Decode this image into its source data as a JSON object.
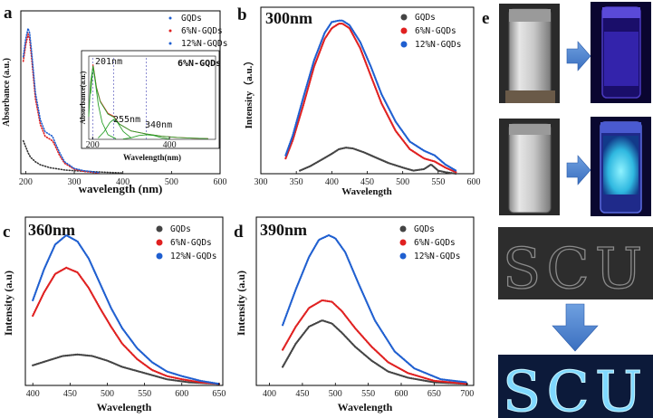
{
  "chart_data": [
    {
      "id": "a",
      "type": "line",
      "panel_label": "a",
      "xlabel": "wavelength (nm)",
      "ylabel": "Absorbance (a.u.)",
      "xlim": [
        190,
        600
      ],
      "ylim": [
        0,
        1.0
      ],
      "xticks": [
        200,
        300,
        400,
        500,
        600
      ],
      "legend": [
        "GQDs",
        "6%N-GQDs",
        "12%N-GQDs"
      ],
      "series": [
        {
          "name": "GQDs",
          "color": "#333333",
          "x": [
            195,
            200,
            205,
            210,
            220,
            230,
            240,
            250,
            260,
            270,
            280,
            300,
            330,
            360,
            400
          ],
          "y": [
            0.22,
            0.18,
            0.14,
            0.11,
            0.08,
            0.06,
            0.05,
            0.04,
            0.035,
            0.03,
            0.025,
            0.02,
            0.015,
            0.01,
            0.005
          ]
        },
        {
          "name": "6%N-GQDs",
          "color": "#e02020",
          "x": [
            195,
            200,
            205,
            208,
            212,
            220,
            230,
            240,
            250,
            255,
            260,
            270,
            280,
            300,
            320,
            350
          ],
          "y": [
            0.75,
            0.86,
            0.93,
            0.9,
            0.78,
            0.5,
            0.33,
            0.25,
            0.23,
            0.22,
            0.19,
            0.12,
            0.07,
            0.03,
            0.015,
            0.005
          ]
        },
        {
          "name": "12%N-GQDs",
          "color": "#1f5fd0",
          "x": [
            195,
            200,
            205,
            208,
            212,
            220,
            230,
            240,
            250,
            255,
            260,
            270,
            280,
            300,
            320,
            350
          ],
          "y": [
            0.78,
            0.9,
            0.97,
            0.94,
            0.82,
            0.54,
            0.36,
            0.28,
            0.26,
            0.25,
            0.21,
            0.14,
            0.08,
            0.035,
            0.02,
            0.008
          ]
        }
      ]
    },
    {
      "id": "a-inset",
      "type": "line",
      "title": "6%N-GQDs",
      "xlabel": "Wavelength(nm)",
      "ylabel": "Absorbance(a.u.)",
      "xlim": [
        190,
        520
      ],
      "ylim": [
        0,
        1.0
      ],
      "xticks": [
        200,
        400
      ],
      "annotations": [
        "201nm",
        "255nm",
        "340nm"
      ],
      "peaks": [
        201,
        255,
        340
      ],
      "series": [
        {
          "name": "data",
          "color": "#e02020",
          "x": [
            195,
            201,
            205,
            210,
            220,
            240,
            255,
            270,
            300,
            340,
            380,
            420,
            460,
            500
          ],
          "y": [
            0.62,
            0.98,
            0.85,
            0.68,
            0.5,
            0.34,
            0.3,
            0.2,
            0.11,
            0.07,
            0.04,
            0.025,
            0.015,
            0.01
          ]
        },
        {
          "name": "fit",
          "color": "#2aa02a",
          "x": [
            195,
            201,
            205,
            210,
            220,
            240,
            255,
            270,
            300,
            340,
            380,
            420,
            460,
            500
          ],
          "y": [
            0.6,
            0.96,
            0.84,
            0.67,
            0.49,
            0.33,
            0.29,
            0.2,
            0.11,
            0.07,
            0.04,
            0.025,
            0.015,
            0.01
          ]
        },
        {
          "name": "peak 201",
          "color": "#2aa02a",
          "x": [
            190,
            195,
            201,
            207,
            215,
            225,
            240,
            260
          ],
          "y": [
            0.3,
            0.75,
            0.95,
            0.75,
            0.45,
            0.22,
            0.06,
            0.01
          ]
        },
        {
          "name": "peak 255",
          "color": "#2aa02a",
          "x": [
            215,
            230,
            245,
            255,
            265,
            280,
            300
          ],
          "y": [
            0.02,
            0.1,
            0.22,
            0.26,
            0.22,
            0.1,
            0.02
          ]
        },
        {
          "name": "peak 340",
          "color": "#2aa02a",
          "x": [
            280,
            300,
            320,
            340,
            360,
            380,
            400
          ],
          "y": [
            0.005,
            0.02,
            0.05,
            0.06,
            0.05,
            0.02,
            0.005
          ]
        }
      ]
    },
    {
      "id": "b",
      "type": "line",
      "panel_label": "b",
      "wavelength_label": "300nm",
      "xlabel": "Wavelength",
      "ylabel": "Intensity（a.u.）",
      "xlim": [
        300,
        600
      ],
      "ylim": [
        0,
        1.0
      ],
      "xticks": [
        300,
        350,
        400,
        450,
        500,
        550,
        600
      ],
      "legend": [
        "GQDs",
        "6%N-GQDs",
        "12%N-GQDs"
      ],
      "series": [
        {
          "name": "GQDs",
          "color": "#444444",
          "x": [
            355,
            370,
            385,
            400,
            410,
            420,
            430,
            445,
            460,
            480,
            500,
            515,
            530,
            540,
            550,
            560,
            575
          ],
          "y": [
            0.02,
            0.05,
            0.09,
            0.13,
            0.16,
            0.17,
            0.165,
            0.14,
            0.11,
            0.07,
            0.04,
            0.02,
            0.03,
            0.06,
            0.02,
            0.01,
            0.0
          ]
        },
        {
          "name": "6%N-GQDs",
          "color": "#e02020",
          "x": [
            335,
            345,
            360,
            375,
            390,
            400,
            410,
            415,
            425,
            440,
            455,
            470,
            490,
            510,
            530,
            545,
            560,
            575
          ],
          "y": [
            0.1,
            0.22,
            0.45,
            0.7,
            0.88,
            0.95,
            0.98,
            0.98,
            0.95,
            0.82,
            0.64,
            0.46,
            0.28,
            0.16,
            0.1,
            0.08,
            0.04,
            0.01
          ]
        },
        {
          "name": "12%N-GQDs",
          "color": "#1f5fd0",
          "x": [
            335,
            345,
            360,
            375,
            390,
            400,
            410,
            415,
            425,
            440,
            455,
            470,
            490,
            510,
            530,
            545,
            560,
            575
          ],
          "y": [
            0.12,
            0.25,
            0.5,
            0.74,
            0.92,
            0.99,
            1.0,
            1.0,
            0.97,
            0.86,
            0.7,
            0.52,
            0.34,
            0.21,
            0.15,
            0.12,
            0.06,
            0.02
          ]
        }
      ]
    },
    {
      "id": "c",
      "type": "line",
      "panel_label": "c",
      "wavelength_label": "360nm",
      "xlabel": "Wavelength",
      "ylabel": "Intensity (a.u)",
      "xlim": [
        390,
        655
      ],
      "ylim": [
        0,
        1.0
      ],
      "xticks": [
        400,
        450,
        500,
        550,
        600,
        650
      ],
      "legend": [
        "GQDs",
        "6%N-GQDs",
        "12%N-GQDs"
      ],
      "series": [
        {
          "name": "GQDs",
          "color": "#444444",
          "x": [
            400,
            420,
            440,
            460,
            480,
            500,
            520,
            550,
            580,
            610,
            650
          ],
          "y": [
            0.13,
            0.16,
            0.19,
            0.2,
            0.19,
            0.16,
            0.12,
            0.08,
            0.04,
            0.02,
            0.01
          ]
        },
        {
          "name": "6%N-GQDs",
          "color": "#e02020",
          "x": [
            400,
            415,
            430,
            445,
            460,
            475,
            490,
            505,
            520,
            540,
            560,
            580,
            600,
            625,
            650
          ],
          "y": [
            0.45,
            0.6,
            0.72,
            0.76,
            0.73,
            0.63,
            0.5,
            0.38,
            0.27,
            0.17,
            0.1,
            0.06,
            0.04,
            0.02,
            0.01
          ]
        },
        {
          "name": "12%N-GQDs",
          "color": "#1f5fd0",
          "x": [
            400,
            415,
            430,
            445,
            460,
            475,
            490,
            505,
            520,
            540,
            560,
            580,
            600,
            625,
            650
          ],
          "y": [
            0.55,
            0.75,
            0.91,
            0.97,
            0.93,
            0.82,
            0.66,
            0.5,
            0.37,
            0.24,
            0.15,
            0.09,
            0.06,
            0.03,
            0.01
          ]
        }
      ]
    },
    {
      "id": "d",
      "type": "line",
      "panel_label": "d",
      "wavelength_label": "390nm",
      "xlabel": "Wavelength",
      "ylabel": "Intensity (a.u)",
      "xlim": [
        380,
        710
      ],
      "ylim": [
        0,
        1.0
      ],
      "xticks": [
        400,
        450,
        500,
        550,
        600,
        650,
        700
      ],
      "legend": [
        "GQDs",
        "6%N-GQDs",
        "12%N-GQDs"
      ],
      "series": [
        {
          "name": "GQDs",
          "color": "#444444",
          "x": [
            420,
            440,
            460,
            480,
            495,
            510,
            530,
            555,
            580,
            610,
            650,
            700
          ],
          "y": [
            0.12,
            0.27,
            0.38,
            0.42,
            0.4,
            0.34,
            0.25,
            0.16,
            0.09,
            0.05,
            0.02,
            0.01
          ]
        },
        {
          "name": "6%N-GQDs",
          "color": "#e02020",
          "x": [
            420,
            440,
            460,
            480,
            495,
            510,
            530,
            555,
            580,
            610,
            650,
            700
          ],
          "y": [
            0.23,
            0.38,
            0.5,
            0.55,
            0.54,
            0.48,
            0.37,
            0.25,
            0.15,
            0.08,
            0.03,
            0.01
          ]
        },
        {
          "name": "12%N-GQDs",
          "color": "#1f5fd0",
          "x": [
            420,
            440,
            460,
            475,
            490,
            500,
            515,
            535,
            560,
            590,
            620,
            660,
            700
          ],
          "y": [
            0.39,
            0.62,
            0.83,
            0.94,
            0.97,
            0.95,
            0.86,
            0.66,
            0.42,
            0.22,
            0.11,
            0.04,
            0.02
          ]
        }
      ]
    }
  ],
  "photos": {
    "panel_label": "e",
    "logo_text": "SCU"
  }
}
